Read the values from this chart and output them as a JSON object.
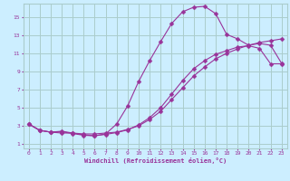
{
  "xlabel": "Windchill (Refroidissement éolien,°C)",
  "bg_color": "#cceeff",
  "grid_color": "#aacccc",
  "line_color": "#993399",
  "xlim": [
    -0.5,
    23.5
  ],
  "ylim": [
    0.5,
    16.5
  ],
  "xticks": [
    0,
    1,
    2,
    3,
    4,
    5,
    6,
    7,
    8,
    9,
    10,
    11,
    12,
    13,
    14,
    15,
    16,
    17,
    18,
    19,
    20,
    21,
    22,
    23
  ],
  "yticks": [
    1,
    3,
    5,
    7,
    9,
    11,
    13,
    15
  ],
  "line1_x": [
    0,
    1,
    2,
    3,
    4,
    5,
    6,
    7,
    8,
    9,
    10,
    11,
    12,
    13,
    14,
    15,
    16,
    17,
    18,
    19,
    20,
    21,
    22,
    23
  ],
  "line1_y": [
    3.2,
    2.5,
    2.3,
    2.2,
    2.2,
    2.1,
    2.1,
    2.2,
    2.3,
    2.6,
    3.0,
    3.7,
    4.6,
    5.9,
    7.2,
    8.5,
    9.5,
    10.4,
    11.0,
    11.5,
    11.9,
    12.2,
    12.4,
    12.6
  ],
  "line2_x": [
    0,
    1,
    2,
    3,
    4,
    5,
    6,
    7,
    8,
    9,
    10,
    11,
    12,
    13,
    14,
    15,
    16,
    17,
    18,
    19,
    20,
    21,
    22,
    23
  ],
  "line2_y": [
    3.2,
    2.5,
    2.3,
    2.4,
    2.2,
    2.0,
    1.9,
    2.1,
    3.2,
    5.2,
    7.9,
    10.2,
    12.3,
    14.3,
    15.6,
    16.1,
    16.2,
    15.4,
    13.1,
    12.6,
    11.9,
    12.1,
    11.9,
    9.9
  ],
  "line3_x": [
    0,
    1,
    2,
    3,
    4,
    5,
    6,
    7,
    8,
    9,
    10,
    11,
    12,
    13,
    14,
    15,
    16,
    17,
    18,
    19,
    20,
    21,
    22,
    23
  ],
  "line3_y": [
    3.2,
    2.5,
    2.3,
    2.35,
    2.15,
    1.95,
    1.9,
    2.05,
    2.25,
    2.55,
    3.1,
    3.9,
    5.0,
    6.5,
    8.0,
    9.3,
    10.2,
    10.9,
    11.3,
    11.7,
    11.85,
    11.55,
    9.85,
    9.85
  ],
  "markersize": 2.5
}
